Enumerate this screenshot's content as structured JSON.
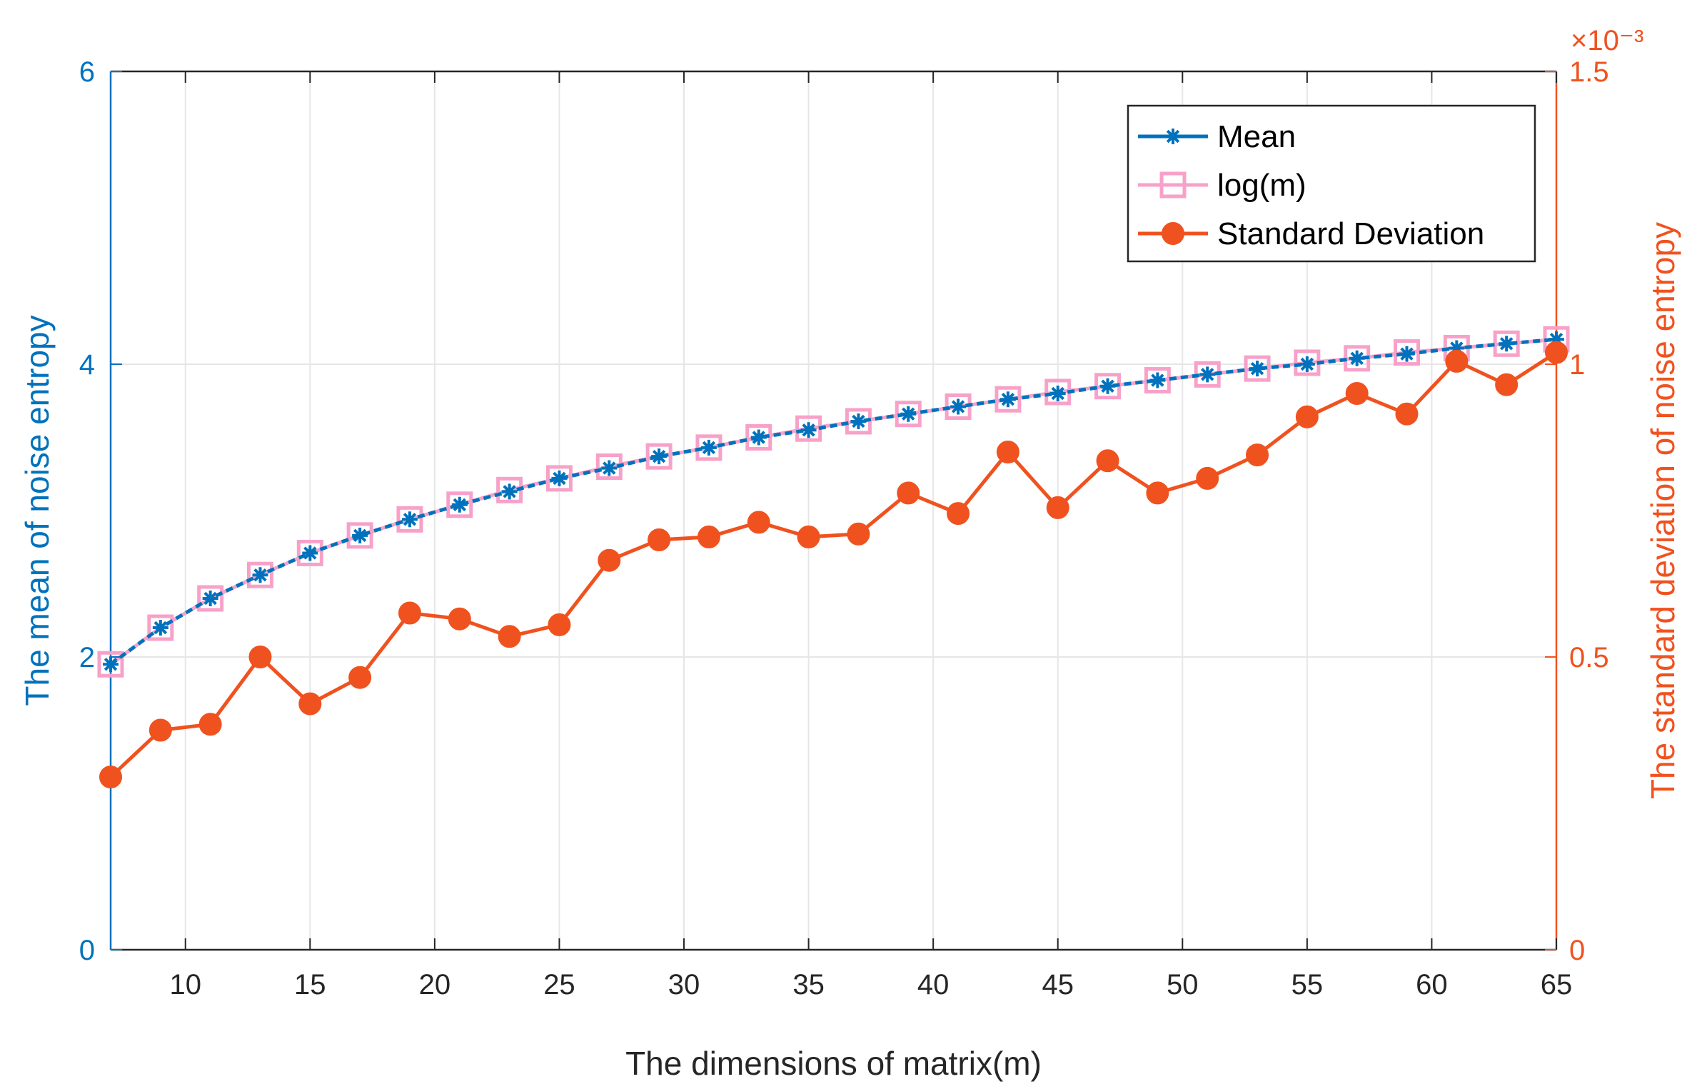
{
  "chart_data": {
    "type": "line",
    "xlabel": "The dimensions of matrix(m)",
    "ylabel_left": "The mean of noise entropy",
    "ylabel_right": "The standard deviation of noise entropy",
    "right_axis_exponent": "×10⁻³",
    "xlim": [
      7,
      65
    ],
    "ylim_left": [
      0,
      6
    ],
    "ylim_right": [
      0,
      1.5
    ],
    "x_ticks": [
      10,
      15,
      20,
      25,
      30,
      35,
      40,
      45,
      50,
      55,
      60,
      65
    ],
    "y_ticks_left": [
      0,
      2,
      4,
      6
    ],
    "y_ticks_right": [
      0,
      0.5,
      1,
      1.5
    ],
    "grid": true,
    "legend_position": "top-right",
    "x": [
      7,
      9,
      11,
      13,
      15,
      17,
      19,
      21,
      23,
      25,
      27,
      29,
      31,
      33,
      35,
      37,
      39,
      41,
      43,
      45,
      47,
      49,
      51,
      53,
      55,
      57,
      59,
      61,
      63,
      65
    ],
    "series": [
      {
        "name": "Mean",
        "axis": "left",
        "color": "#0072BD",
        "marker": "asterisk",
        "values": [
          1.95,
          2.2,
          2.4,
          2.56,
          2.71,
          2.83,
          2.94,
          3.04,
          3.13,
          3.22,
          3.29,
          3.37,
          3.43,
          3.5,
          3.55,
          3.61,
          3.66,
          3.71,
          3.76,
          3.8,
          3.85,
          3.89,
          3.93,
          3.97,
          4.0,
          4.04,
          4.07,
          4.11,
          4.14,
          4.17
        ]
      },
      {
        "name": "log(m)",
        "axis": "left",
        "color": "#F7A1C9",
        "marker": "square",
        "values": [
          1.95,
          2.2,
          2.4,
          2.56,
          2.71,
          2.83,
          2.94,
          3.04,
          3.14,
          3.22,
          3.3,
          3.37,
          3.43,
          3.5,
          3.56,
          3.61,
          3.66,
          3.71,
          3.76,
          3.81,
          3.85,
          3.89,
          3.93,
          3.97,
          4.01,
          4.04,
          4.08,
          4.11,
          4.14,
          4.17
        ]
      },
      {
        "name": "Standard Deviation",
        "axis": "right",
        "color": "#F0521F",
        "marker": "circle",
        "values": [
          0.295,
          0.375,
          0.385,
          0.5,
          0.42,
          0.465,
          0.575,
          0.565,
          0.535,
          0.555,
          0.665,
          0.7,
          0.705,
          0.73,
          0.705,
          0.71,
          0.78,
          0.745,
          0.85,
          0.755,
          0.835,
          0.78,
          0.805,
          0.845,
          0.91,
          0.95,
          0.915,
          1.005,
          0.965,
          1.02
        ]
      }
    ]
  }
}
